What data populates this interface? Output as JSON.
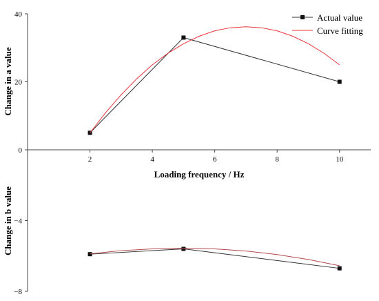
{
  "chart_data": [
    {
      "type": "line",
      "ylabel": "Change in a value",
      "xlabel": "Loading frequency / Hz",
      "xlim": [
        0,
        11
      ],
      "ylim": [
        0,
        40
      ],
      "x_ticks": [
        2,
        4,
        6,
        8,
        10
      ],
      "y_ticks": [
        0,
        20,
        40
      ],
      "legend_position": "top-right",
      "series": [
        {
          "name": "Actual value",
          "x": [
            2,
            5,
            10
          ],
          "y": [
            5,
            33,
            20
          ],
          "color": "#333333",
          "marker": "square"
        },
        {
          "name": "Curve fitting",
          "x": [
            2,
            2.5,
            3,
            3.5,
            4,
            4.5,
            5,
            5.5,
            6,
            6.5,
            7,
            7.5,
            8,
            8.5,
            9,
            9.5,
            10
          ],
          "y": [
            5,
            10.9,
            16.2,
            20.9,
            25,
            28.4,
            31.2,
            33.4,
            35,
            35.9,
            36.2,
            35.9,
            35,
            33.4,
            31.2,
            28.4,
            25
          ],
          "color": "#e8363b",
          "marker": "none"
        }
      ]
    },
    {
      "type": "line",
      "ylabel": "Change in b value",
      "xlim": [
        0,
        11
      ],
      "ylim": [
        -8,
        0
      ],
      "y_ticks": [
        -4,
        -8
      ],
      "series": [
        {
          "x": [
            2,
            5,
            10
          ],
          "y": [
            -5.9,
            -5.6,
            -6.7
          ],
          "color": "#333333",
          "marker": "square"
        },
        {
          "x": [
            2,
            3,
            4,
            5,
            6,
            7,
            8,
            9,
            10
          ],
          "y": [
            -5.88,
            -5.7,
            -5.6,
            -5.56,
            -5.6,
            -5.72,
            -5.92,
            -6.2,
            -6.55
          ],
          "color": "#b5474a",
          "marker": "none"
        }
      ]
    }
  ]
}
